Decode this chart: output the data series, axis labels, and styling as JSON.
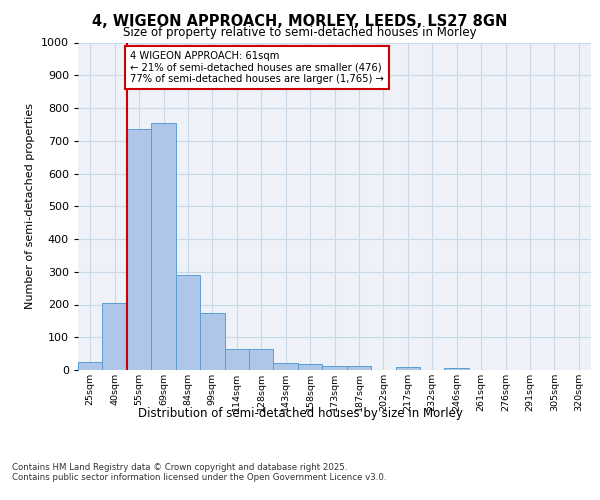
{
  "title_line1": "4, WIGEON APPROACH, MORLEY, LEEDS, LS27 8GN",
  "title_line2": "Size of property relative to semi-detached houses in Morley",
  "xlabel": "Distribution of semi-detached houses by size in Morley",
  "ylabel": "Number of semi-detached properties",
  "categories": [
    "25sqm",
    "40sqm",
    "55sqm",
    "69sqm",
    "84sqm",
    "99sqm",
    "114sqm",
    "128sqm",
    "143sqm",
    "158sqm",
    "173sqm",
    "187sqm",
    "202sqm",
    "217sqm",
    "232sqm",
    "246sqm",
    "261sqm",
    "276sqm",
    "291sqm",
    "305sqm",
    "320sqm"
  ],
  "values": [
    25,
    205,
    735,
    755,
    290,
    175,
    65,
    65,
    20,
    18,
    13,
    13,
    0,
    8,
    0,
    5,
    0,
    0,
    0,
    0,
    0
  ],
  "bar_color": "#aec6e8",
  "bar_edge_color": "#5a9fd4",
  "grid_color": "#c8d8e8",
  "annotation_text": "4 WIGEON APPROACH: 61sqm\n← 21% of semi-detached houses are smaller (476)\n77% of semi-detached houses are larger (1,765) →",
  "annotation_box_color": "#ffffff",
  "annotation_box_edge_color": "#cc0000",
  "vline_color": "#cc0000",
  "ylim": [
    0,
    1000
  ],
  "yticks": [
    0,
    100,
    200,
    300,
    400,
    500,
    600,
    700,
    800,
    900,
    1000
  ],
  "footer_line1": "Contains HM Land Registry data © Crown copyright and database right 2025.",
  "footer_line2": "Contains public sector information licensed under the Open Government Licence v3.0.",
  "bg_color": "#eef2f8"
}
